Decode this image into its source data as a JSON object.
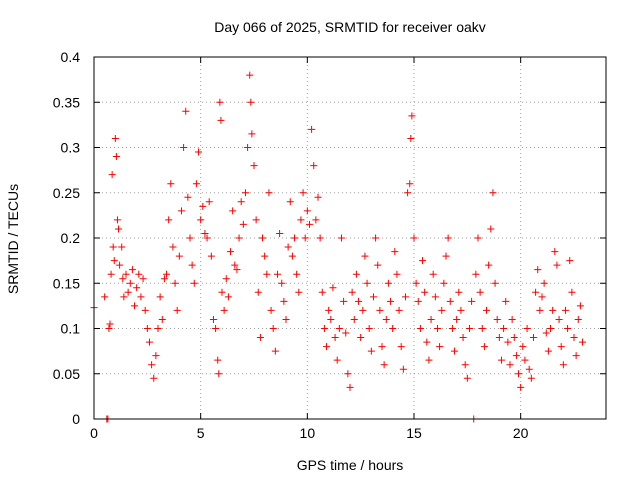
{
  "chart_data": {
    "type": "scatter",
    "title": "Day 066 of 2025, SRMTID for receiver oakv",
    "xlabel": "GPS time / hours",
    "ylabel": "SRMTID / TECUs",
    "xlim": [
      0,
      24
    ],
    "ylim": [
      0,
      0.4
    ],
    "x_ticks": [
      0,
      5,
      10,
      15,
      20
    ],
    "y_ticks": [
      0,
      0.05,
      0.1,
      0.15,
      0.2,
      0.25,
      0.3,
      0.35,
      0.4
    ],
    "x_tick_labels": [
      "0",
      "5",
      "10",
      "15",
      "20"
    ],
    "y_tick_labels": [
      "0",
      "0.05",
      "0.1",
      "0.15",
      "0.2",
      "0.25",
      "0.3",
      "0.35",
      "0.4"
    ],
    "grid": true,
    "marker": "+",
    "marker_color": "#ff0000",
    "series": [
      {
        "name": "SRMTID",
        "points": [
          [
            0.0,
            0.123
          ],
          [
            0.5,
            0.135
          ],
          [
            0.6,
            0.0
          ],
          [
            0.65,
            0.0
          ],
          [
            0.7,
            0.1
          ],
          [
            0.75,
            0.105
          ],
          [
            0.8,
            0.16
          ],
          [
            0.85,
            0.27
          ],
          [
            0.9,
            0.19
          ],
          [
            0.95,
            0.175
          ],
          [
            1.0,
            0.31
          ],
          [
            1.05,
            0.29
          ],
          [
            1.1,
            0.22
          ],
          [
            1.15,
            0.21
          ],
          [
            1.2,
            0.17
          ],
          [
            1.3,
            0.19
          ],
          [
            1.35,
            0.155
          ],
          [
            1.4,
            0.135
          ],
          [
            1.5,
            0.16
          ],
          [
            1.6,
            0.14
          ],
          [
            1.7,
            0.15
          ],
          [
            1.8,
            0.165
          ],
          [
            1.9,
            0.125
          ],
          [
            2.0,
            0.145
          ],
          [
            2.1,
            0.16
          ],
          [
            2.2,
            0.135
          ],
          [
            2.3,
            0.155
          ],
          [
            2.4,
            0.12
          ],
          [
            2.5,
            0.1
          ],
          [
            2.6,
            0.085
          ],
          [
            2.7,
            0.06
          ],
          [
            2.8,
            0.045
          ],
          [
            2.9,
            0.07
          ],
          [
            3.0,
            0.1
          ],
          [
            3.1,
            0.135
          ],
          [
            3.2,
            0.11
          ],
          [
            3.3,
            0.155
          ],
          [
            3.4,
            0.16
          ],
          [
            3.5,
            0.22
          ],
          [
            3.6,
            0.26
          ],
          [
            3.7,
            0.19
          ],
          [
            3.8,
            0.15
          ],
          [
            3.9,
            0.12
          ],
          [
            4.0,
            0.18
          ],
          [
            4.1,
            0.23
          ],
          [
            4.2,
            0.3
          ],
          [
            4.3,
            0.34
          ],
          [
            4.4,
            0.245
          ],
          [
            4.5,
            0.2
          ],
          [
            4.6,
            0.17
          ],
          [
            4.7,
            0.15
          ],
          [
            4.8,
            0.26
          ],
          [
            4.9,
            0.295
          ],
          [
            5.0,
            0.22
          ],
          [
            5.1,
            0.235
          ],
          [
            5.2,
            0.205
          ],
          [
            5.3,
            0.2
          ],
          [
            5.4,
            0.24
          ],
          [
            5.5,
            0.18
          ],
          [
            5.6,
            0.11
          ],
          [
            5.7,
            0.1
          ],
          [
            5.8,
            0.065
          ],
          [
            5.85,
            0.05
          ],
          [
            5.9,
            0.35
          ],
          [
            5.95,
            0.33
          ],
          [
            6.0,
            0.14
          ],
          [
            6.1,
            0.12
          ],
          [
            6.2,
            0.155
          ],
          [
            6.3,
            0.135
          ],
          [
            6.4,
            0.185
          ],
          [
            6.5,
            0.23
          ],
          [
            6.6,
            0.17
          ],
          [
            6.7,
            0.165
          ],
          [
            6.8,
            0.2
          ],
          [
            6.9,
            0.24
          ],
          [
            7.0,
            0.215
          ],
          [
            7.1,
            0.25
          ],
          [
            7.2,
            0.3
          ],
          [
            7.3,
            0.38
          ],
          [
            7.35,
            0.35
          ],
          [
            7.4,
            0.315
          ],
          [
            7.5,
            0.28
          ],
          [
            7.6,
            0.22
          ],
          [
            7.7,
            0.14
          ],
          [
            7.8,
            0.09
          ],
          [
            7.9,
            0.2
          ],
          [
            8.0,
            0.18
          ],
          [
            8.1,
            0.16
          ],
          [
            8.2,
            0.25
          ],
          [
            8.3,
            0.12
          ],
          [
            8.4,
            0.1
          ],
          [
            8.5,
            0.075
          ],
          [
            8.6,
            0.16
          ],
          [
            8.7,
            0.205
          ],
          [
            8.8,
            0.15
          ],
          [
            8.9,
            0.13
          ],
          [
            9.0,
            0.11
          ],
          [
            9.1,
            0.19
          ],
          [
            9.2,
            0.24
          ],
          [
            9.3,
            0.18
          ],
          [
            9.4,
            0.2
          ],
          [
            9.5,
            0.16
          ],
          [
            9.6,
            0.14
          ],
          [
            9.7,
            0.22
          ],
          [
            9.8,
            0.25
          ],
          [
            9.9,
            0.2
          ],
          [
            10.0,
            0.23
          ],
          [
            10.1,
            0.215
          ],
          [
            10.2,
            0.32
          ],
          [
            10.3,
            0.28
          ],
          [
            10.4,
            0.22
          ],
          [
            10.5,
            0.245
          ],
          [
            10.6,
            0.2
          ],
          [
            10.7,
            0.14
          ],
          [
            10.8,
            0.1
          ],
          [
            10.9,
            0.08
          ],
          [
            11.0,
            0.12
          ],
          [
            11.1,
            0.11
          ],
          [
            11.2,
            0.145
          ],
          [
            11.3,
            0.09
          ],
          [
            11.4,
            0.065
          ],
          [
            11.5,
            0.1
          ],
          [
            11.6,
            0.2
          ],
          [
            11.7,
            0.13
          ],
          [
            11.8,
            0.095
          ],
          [
            11.9,
            0.05
          ],
          [
            12.0,
            0.035
          ],
          [
            12.1,
            0.14
          ],
          [
            12.2,
            0.11
          ],
          [
            12.3,
            0.16
          ],
          [
            12.4,
            0.13
          ],
          [
            12.5,
            0.09
          ],
          [
            12.6,
            0.12
          ],
          [
            12.7,
            0.18
          ],
          [
            12.8,
            0.15
          ],
          [
            12.9,
            0.1
          ],
          [
            13.0,
            0.075
          ],
          [
            13.1,
            0.135
          ],
          [
            13.2,
            0.2
          ],
          [
            13.3,
            0.17
          ],
          [
            13.4,
            0.12
          ],
          [
            13.5,
            0.08
          ],
          [
            13.6,
            0.06
          ],
          [
            13.7,
            0.11
          ],
          [
            13.8,
            0.15
          ],
          [
            13.9,
            0.13
          ],
          [
            14.0,
            0.1
          ],
          [
            14.1,
            0.185
          ],
          [
            14.2,
            0.16
          ],
          [
            14.3,
            0.12
          ],
          [
            14.4,
            0.08
          ],
          [
            14.5,
            0.055
          ],
          [
            14.6,
            0.135
          ],
          [
            14.7,
            0.25
          ],
          [
            14.8,
            0.26
          ],
          [
            14.85,
            0.31
          ],
          [
            14.9,
            0.335
          ],
          [
            15.0,
            0.2
          ],
          [
            15.1,
            0.15
          ],
          [
            15.2,
            0.13
          ],
          [
            15.3,
            0.1
          ],
          [
            15.4,
            0.175
          ],
          [
            15.5,
            0.14
          ],
          [
            15.6,
            0.085
          ],
          [
            15.7,
            0.065
          ],
          [
            15.8,
            0.11
          ],
          [
            15.9,
            0.16
          ],
          [
            16.0,
            0.135
          ],
          [
            16.1,
            0.1
          ],
          [
            16.2,
            0.08
          ],
          [
            16.3,
            0.12
          ],
          [
            16.4,
            0.15
          ],
          [
            16.5,
            0.18
          ],
          [
            16.6,
            0.2
          ],
          [
            16.7,
            0.13
          ],
          [
            16.8,
            0.1
          ],
          [
            16.9,
            0.075
          ],
          [
            17.0,
            0.11
          ],
          [
            17.1,
            0.14
          ],
          [
            17.2,
            0.12
          ],
          [
            17.3,
            0.09
          ],
          [
            17.4,
            0.06
          ],
          [
            17.5,
            0.045
          ],
          [
            17.6,
            0.1
          ],
          [
            17.7,
            0.13
          ],
          [
            17.8,
            0.0
          ],
          [
            17.9,
            0.16
          ],
          [
            18.0,
            0.2
          ],
          [
            18.1,
            0.14
          ],
          [
            18.2,
            0.1
          ],
          [
            18.3,
            0.08
          ],
          [
            18.4,
            0.12
          ],
          [
            18.5,
            0.17
          ],
          [
            18.6,
            0.21
          ],
          [
            18.7,
            0.25
          ],
          [
            18.8,
            0.15
          ],
          [
            18.9,
            0.11
          ],
          [
            19.0,
            0.09
          ],
          [
            19.1,
            0.065
          ],
          [
            19.2,
            0.1
          ],
          [
            19.3,
            0.13
          ],
          [
            19.4,
            0.085
          ],
          [
            19.5,
            0.06
          ],
          [
            19.6,
            0.11
          ],
          [
            19.7,
            0.09
          ],
          [
            19.8,
            0.07
          ],
          [
            19.9,
            0.05
          ],
          [
            20.0,
            0.035
          ],
          [
            20.1,
            0.08
          ],
          [
            20.2,
            0.065
          ],
          [
            20.3,
            0.1
          ],
          [
            20.4,
            0.055
          ],
          [
            20.5,
            0.045
          ],
          [
            20.6,
            0.09
          ],
          [
            20.7,
            0.14
          ],
          [
            20.8,
            0.165
          ],
          [
            20.9,
            0.12
          ],
          [
            21.0,
            0.135
          ],
          [
            21.1,
            0.15
          ],
          [
            21.2,
            0.095
          ],
          [
            21.3,
            0.075
          ],
          [
            21.4,
            0.1
          ],
          [
            21.5,
            0.12
          ],
          [
            21.6,
            0.185
          ],
          [
            21.7,
            0.17
          ],
          [
            21.8,
            0.11
          ],
          [
            21.9,
            0.08
          ],
          [
            22.0,
            0.06
          ],
          [
            22.1,
            0.12
          ],
          [
            22.2,
            0.1
          ],
          [
            22.3,
            0.175
          ],
          [
            22.4,
            0.14
          ],
          [
            22.5,
            0.09
          ],
          [
            22.6,
            0.07
          ],
          [
            22.7,
            0.11
          ],
          [
            22.8,
            0.125
          ],
          [
            22.9,
            0.085
          ]
        ]
      }
    ]
  }
}
